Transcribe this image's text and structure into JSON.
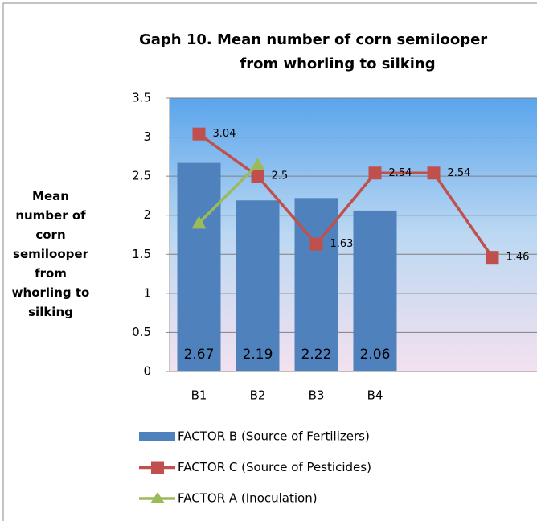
{
  "chart_data": {
    "type": "bar_line",
    "title": [
      "Gaph 10.  Mean number of corn semilooper",
      "from whorling to silking"
    ],
    "y_label": "Mean number of corn semilooper from whorling to silking",
    "categories": [
      "B1",
      "B2",
      "B3",
      "B4",
      null,
      null
    ],
    "series": [
      {
        "name": "FACTOR B (Source of Fertilizers)",
        "type": "bar",
        "color": "#4f81bd",
        "values": [
          2.67,
          2.19,
          2.22,
          2.06,
          null,
          null
        ]
      },
      {
        "name": "FACTOR C (Source of Pesticides)",
        "type": "line",
        "marker": "square",
        "color": "#c0504d",
        "values": [
          3.04,
          2.5,
          1.63,
          2.54,
          2.54,
          1.46
        ]
      },
      {
        "name": "FACTOR A (Inoculation)",
        "type": "line",
        "marker": "triangle",
        "color": "#9bbb59",
        "values": [
          1.9,
          2.65,
          null,
          null,
          null,
          null
        ]
      }
    ],
    "labeled_series": [
      0,
      1
    ],
    "ylim": [
      0,
      3.5
    ],
    "yticks": [
      0,
      0.5,
      1,
      1.5,
      2,
      2.5,
      3,
      3.5
    ],
    "grid": true
  }
}
